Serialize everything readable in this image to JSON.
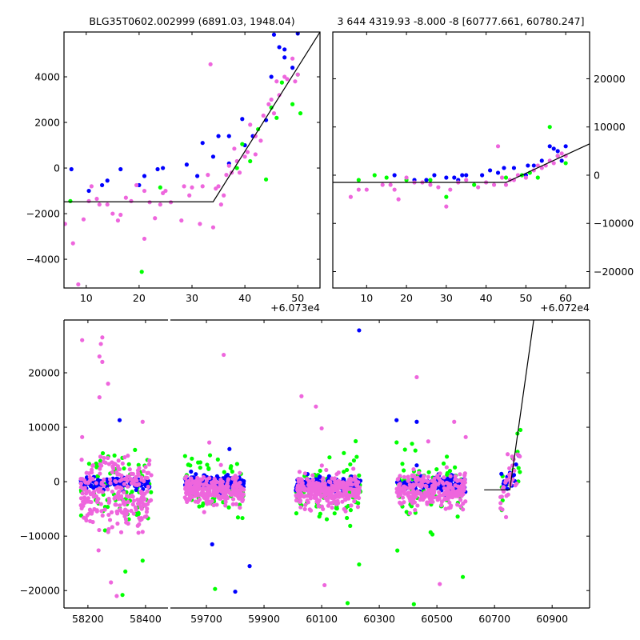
{
  "chart_data": [
    {
      "id": "top-left",
      "type": "scatter",
      "title": "BLG35T0602.002999 (6891.03, 1948.04)",
      "xlim": [
        5.8,
        54.2
      ],
      "ylim": [
        -5260,
        5965
      ],
      "x_offset_label": "+6.073e4",
      "xticks": [
        10,
        20,
        30,
        40,
        50
      ],
      "yticks": [
        -4000,
        -2000,
        0,
        2000,
        4000
      ],
      "ytick_side": "left",
      "model_line": [
        [
          5.8,
          -1480
        ],
        [
          34,
          -1480
        ],
        [
          54.2,
          5965
        ]
      ],
      "series": [
        {
          "name": "blue",
          "color": "#0000ff",
          "points": [
            [
              7.2,
              -50
            ],
            [
              10.5,
              -1000
            ],
            [
              13,
              -750
            ],
            [
              14,
              -550
            ],
            [
              16.5,
              -50
            ],
            [
              20,
              -750
            ],
            [
              21,
              -350
            ],
            [
              23.5,
              -50
            ],
            [
              24.5,
              0
            ],
            [
              29,
              150
            ],
            [
              31,
              -350
            ],
            [
              32,
              1100
            ],
            [
              34,
              500
            ],
            [
              35,
              1400
            ],
            [
              37,
              1400
            ],
            [
              37,
              200
            ],
            [
              39.5,
              2150
            ],
            [
              40,
              1000
            ],
            [
              41.5,
              1400
            ],
            [
              44,
              2100
            ],
            [
              45,
              4000
            ],
            [
              45.5,
              5850
            ],
            [
              46.5,
              5300
            ],
            [
              47.5,
              5200
            ],
            [
              47.5,
              4850
            ],
            [
              49,
              4400
            ],
            [
              50,
              5900
            ]
          ]
        },
        {
          "name": "green",
          "color": "#00ff00",
          "points": [
            [
              7,
              -1450
            ],
            [
              20.5,
              -4550
            ],
            [
              24,
              -850
            ],
            [
              38.5,
              0
            ],
            [
              39.5,
              1050
            ],
            [
              41,
              300
            ],
            [
              42.5,
              1700
            ],
            [
              44,
              -500
            ],
            [
              45,
              2650
            ],
            [
              46,
              2200
            ],
            [
              47,
              3750
            ],
            [
              49,
              2800
            ],
            [
              50,
              4100
            ],
            [
              50.5,
              2400
            ]
          ]
        },
        {
          "name": "magenta",
          "color": "#ee66dd",
          "points": [
            [
              6,
              -2450
            ],
            [
              7.5,
              -3300
            ],
            [
              8.5,
              -5100
            ],
            [
              9.5,
              -2250
            ],
            [
              10.5,
              -1450
            ],
            [
              11,
              -800
            ],
            [
              12,
              -1350
            ],
            [
              12.5,
              -1600
            ],
            [
              14,
              -1600
            ],
            [
              15,
              -2000
            ],
            [
              16,
              -2300
            ],
            [
              16.5,
              -2050
            ],
            [
              17.5,
              -1300
            ],
            [
              18.5,
              -1450
            ],
            [
              19.5,
              -750
            ],
            [
              21,
              -3100
            ],
            [
              21,
              -1000
            ],
            [
              22,
              -1500
            ],
            [
              23,
              -2200
            ],
            [
              24,
              -1600
            ],
            [
              24.5,
              -1100
            ],
            [
              25,
              -1000
            ],
            [
              26,
              -1500
            ],
            [
              28,
              -2300
            ],
            [
              28.5,
              -800
            ],
            [
              29.5,
              -1200
            ],
            [
              30,
              -850
            ],
            [
              31.5,
              -2450
            ],
            [
              32,
              -800
            ],
            [
              33,
              -300
            ],
            [
              33.5,
              4550
            ],
            [
              34,
              -2600
            ],
            [
              34.5,
              -900
            ],
            [
              35,
              -800
            ],
            [
              35.5,
              -1600
            ],
            [
              36,
              -1200
            ],
            [
              36.5,
              -300
            ],
            [
              37,
              100
            ],
            [
              37.5,
              -200
            ],
            [
              38,
              850
            ],
            [
              38.5,
              300
            ],
            [
              39,
              -200
            ],
            [
              40,
              500
            ],
            [
              40.5,
              700
            ],
            [
              41,
              1900
            ],
            [
              42,
              1400
            ],
            [
              42,
              600
            ],
            [
              43,
              1200
            ],
            [
              43.5,
              2300
            ],
            [
              44.5,
              2800
            ],
            [
              45,
              3000
            ],
            [
              45.5,
              2400
            ],
            [
              46,
              3800
            ],
            [
              46.5,
              3200
            ],
            [
              47.5,
              4000
            ],
            [
              48,
              3900
            ],
            [
              49,
              4800
            ],
            [
              49.5,
              3800
            ],
            [
              50,
              4100
            ]
          ]
        }
      ]
    },
    {
      "id": "top-right",
      "type": "scatter",
      "title": "3 644 4319.93 -8.000 -8 [60777.661, 60780.247]",
      "xlim": [
        1.5,
        66
      ],
      "ylim": [
        -23400,
        29700
      ],
      "x_offset_label": "+6.072e4",
      "xticks": [
        10,
        20,
        30,
        40,
        50,
        60
      ],
      "yticks": [
        -20000,
        -10000,
        0,
        10000,
        20000
      ],
      "ytick_side": "right",
      "model_line": [
        [
          1.5,
          -1500
        ],
        [
          45,
          -1500
        ],
        [
          66,
          6500
        ]
      ],
      "series": [
        {
          "name": "blue",
          "color": "#0000ff",
          "points": [
            [
              17,
              0
            ],
            [
              22,
              -1000
            ],
            [
              25,
              -1000
            ],
            [
              27,
              0
            ],
            [
              30,
              -500
            ],
            [
              32,
              -500
            ],
            [
              33,
              -1000
            ],
            [
              34,
              0
            ],
            [
              35,
              0
            ],
            [
              39,
              0
            ],
            [
              41,
              1000
            ],
            [
              43,
              500
            ],
            [
              44.5,
              1500
            ],
            [
              47,
              1500
            ],
            [
              50,
              0
            ],
            [
              50.5,
              2000
            ],
            [
              52,
              2000
            ],
            [
              54,
              3000
            ],
            [
              56,
              6000
            ],
            [
              57,
              5500
            ],
            [
              58,
              5000
            ],
            [
              59,
              3000
            ],
            [
              60,
              6000
            ]
          ]
        },
        {
          "name": "green",
          "color": "#00ff00",
          "points": [
            [
              8,
              -1000
            ],
            [
              12,
              0
            ],
            [
              15,
              -500
            ],
            [
              20,
              -1000
            ],
            [
              26,
              -1000
            ],
            [
              30,
              -4500
            ],
            [
              37,
              -2000
            ],
            [
              45,
              -500
            ],
            [
              49,
              0
            ],
            [
              51,
              500
            ],
            [
              53,
              -500
            ],
            [
              56,
              10000
            ],
            [
              58,
              4000
            ],
            [
              60,
              2500
            ]
          ]
        },
        {
          "name": "magenta",
          "color": "#ee66dd",
          "points": [
            [
              6,
              -4500
            ],
            [
              8,
              -3000
            ],
            [
              10,
              -3000
            ],
            [
              14,
              -2000
            ],
            [
              16,
              -2000
            ],
            [
              17,
              -3000
            ],
            [
              18,
              -5000
            ],
            [
              20,
              -500
            ],
            [
              22,
              -1500
            ],
            [
              24,
              -1500
            ],
            [
              26,
              -2000
            ],
            [
              28,
              -2500
            ],
            [
              30,
              -6500
            ],
            [
              31,
              -3000
            ],
            [
              33,
              -1500
            ],
            [
              35,
              -1000
            ],
            [
              38,
              -2500
            ],
            [
              40,
              -1500
            ],
            [
              42,
              -2000
            ],
            [
              43,
              6000
            ],
            [
              44,
              -500
            ],
            [
              45,
              -2000
            ],
            [
              46,
              -1000
            ],
            [
              47,
              -1000
            ],
            [
              48,
              0
            ],
            [
              50,
              -500
            ],
            [
              52,
              1000
            ],
            [
              53,
              2000
            ],
            [
              54,
              1500
            ],
            [
              55,
              2000
            ],
            [
              56,
              3000
            ],
            [
              57,
              2500
            ],
            [
              58,
              4000
            ],
            [
              59,
              4500
            ],
            [
              60,
              4000
            ]
          ]
        }
      ]
    },
    {
      "id": "bottom",
      "type": "scatter",
      "title": "",
      "broken_x_segments": [
        {
          "xlim": [
            58117,
            58478
          ],
          "xticks": [
            58200,
            58400
          ]
        },
        {
          "xlim": [
            59575,
            61030
          ],
          "xticks": [
            59700,
            59900,
            60100,
            60300,
            60500,
            60700,
            60900
          ]
        }
      ],
      "ylim": [
        -23200,
        29700
      ],
      "yticks": [
        -20000,
        -10000,
        0,
        10000,
        20000
      ],
      "ytick_side": "left",
      "model_line": [
        [
          60664,
          -1500
        ],
        [
          60753,
          -1500
        ],
        [
          60836,
          29700
        ]
      ],
      "seasons": [
        {
          "x": [
            58175,
            58420
          ],
          "blue": {
            "n": 110,
            "mean": -300,
            "sd": 500
          },
          "green": {
            "n": 70,
            "mean": -500,
            "sd": 3500
          },
          "magenta": {
            "n": 260,
            "mean": -3000,
            "sd": 3300
          }
        },
        {
          "x": [
            59625,
            59830
          ],
          "blue": {
            "n": 150,
            "mean": -300,
            "sd": 700
          },
          "green": {
            "n": 70,
            "mean": -800,
            "sd": 2600
          },
          "magenta": {
            "n": 260,
            "mean": -1500,
            "sd": 1300
          }
        },
        {
          "x": [
            60010,
            60235
          ],
          "blue": {
            "n": 170,
            "mean": -500,
            "sd": 600
          },
          "green": {
            "n": 80,
            "mean": -1200,
            "sd": 3000
          },
          "magenta": {
            "n": 300,
            "mean": -1700,
            "sd": 1400
          }
        },
        {
          "x": [
            60360,
            60600
          ],
          "blue": {
            "n": 150,
            "mean": -400,
            "sd": 700
          },
          "green": {
            "n": 70,
            "mean": -1500,
            "sd": 3200
          },
          "magenta": {
            "n": 260,
            "mean": -1800,
            "sd": 1500
          }
        },
        {
          "x": [
            60720,
            60790
          ],
          "blue": {
            "n": 15,
            "mean": 500,
            "sd": 1500
          },
          "green": {
            "n": 12,
            "mean": 0,
            "sd": 2500
          },
          "magenta": {
            "n": 30,
            "mean": -500,
            "sd": 2000
          }
        }
      ],
      "outliers": {
        "blue": [
          [
            58310,
            11300
          ],
          [
            59800,
            -20200
          ],
          [
            59780,
            6000
          ],
          [
            59850,
            -15500
          ],
          [
            60230,
            27800
          ],
          [
            60360,
            11300
          ],
          [
            60430,
            11000
          ],
          [
            60430,
            3000
          ],
          [
            59720,
            -11500
          ],
          [
            60580,
            -1000
          ]
        ],
        "green": [
          [
            58330,
            -16500
          ],
          [
            58390,
            -14500
          ],
          [
            58320,
            -20800
          ],
          [
            60190,
            -22300
          ],
          [
            60420,
            -22500
          ],
          [
            60590,
            -17500
          ],
          [
            60790,
            9500
          ],
          [
            60780,
            5500
          ],
          [
            60230,
            -15200
          ],
          [
            59730,
            -19700
          ]
        ],
        "magenta": [
          [
            58180,
            26000
          ],
          [
            58250,
            26500
          ],
          [
            58245,
            25300
          ],
          [
            58240,
            23000
          ],
          [
            58250,
            22000
          ],
          [
            58270,
            18000
          ],
          [
            58240,
            15500
          ],
          [
            58390,
            11000
          ],
          [
            58180,
            8200
          ],
          [
            58300,
            -21000
          ],
          [
            58280,
            -18500
          ],
          [
            59760,
            23300
          ],
          [
            60030,
            15700
          ],
          [
            60080,
            13800
          ],
          [
            60430,
            19200
          ],
          [
            60560,
            11000
          ],
          [
            60600,
            8200
          ],
          [
            60470,
            7400
          ],
          [
            60510,
            -18800
          ],
          [
            60110,
            -19000
          ],
          [
            60100,
            9800
          ],
          [
            59710,
            7200
          ],
          [
            60740,
            -6500
          ],
          [
            60780,
            5000
          ]
        ]
      }
    }
  ]
}
